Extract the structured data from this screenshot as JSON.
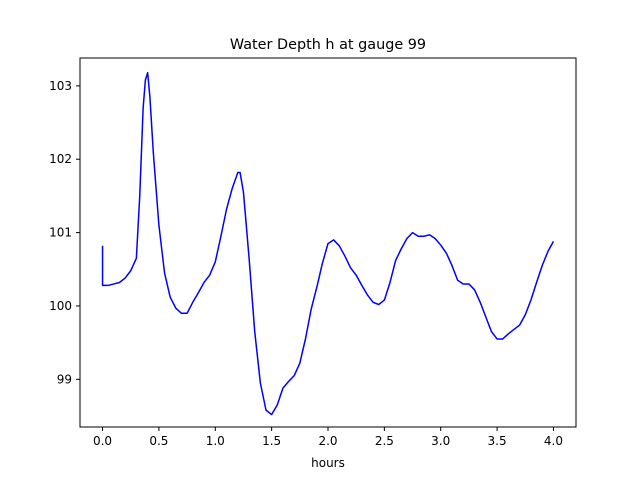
{
  "chart_data": {
    "type": "line",
    "title": "Water Depth h at gauge 99",
    "xlabel": "hours",
    "ylabel": "",
    "xlim": [
      -0.2,
      4.2
    ],
    "ylim": [
      98.35,
      103.38
    ],
    "x_ticks": [
      0.0,
      0.5,
      1.0,
      1.5,
      2.0,
      2.5,
      3.0,
      3.5,
      4.0
    ],
    "x_tick_labels": [
      "0.0",
      "0.5",
      "1.0",
      "1.5",
      "2.0",
      "2.5",
      "3.0",
      "3.5",
      "4.0"
    ],
    "y_ticks": [
      99,
      100,
      101,
      102,
      103
    ],
    "y_tick_labels": [
      "99",
      "100",
      "101",
      "102",
      "103"
    ],
    "grid": false,
    "series": [
      {
        "color": "#0000ff",
        "x": [
          0.0,
          0.0,
          0.05,
          0.1,
          0.15,
          0.2,
          0.25,
          0.3,
          0.33,
          0.36,
          0.38,
          0.4,
          0.42,
          0.45,
          0.5,
          0.55,
          0.6,
          0.65,
          0.7,
          0.75,
          0.8,
          0.85,
          0.9,
          0.95,
          1.0,
          1.05,
          1.1,
          1.15,
          1.2,
          1.22,
          1.25,
          1.3,
          1.35,
          1.4,
          1.45,
          1.5,
          1.55,
          1.6,
          1.65,
          1.7,
          1.75,
          1.8,
          1.85,
          1.9,
          1.95,
          2.0,
          2.05,
          2.1,
          2.15,
          2.2,
          2.25,
          2.3,
          2.35,
          2.4,
          2.45,
          2.5,
          2.55,
          2.6,
          2.65,
          2.7,
          2.75,
          2.8,
          2.85,
          2.9,
          2.95,
          3.0,
          3.05,
          3.1,
          3.15,
          3.2,
          3.25,
          3.3,
          3.35,
          3.4,
          3.45,
          3.5,
          3.55,
          3.6,
          3.65,
          3.7,
          3.75,
          3.8,
          3.85,
          3.9,
          3.95,
          4.0
        ],
        "y": [
          100.82,
          100.28,
          100.28,
          100.3,
          100.32,
          100.38,
          100.48,
          100.65,
          101.5,
          102.7,
          103.08,
          103.18,
          102.85,
          102.1,
          101.1,
          100.45,
          100.12,
          99.97,
          99.9,
          99.9,
          100.05,
          100.18,
          100.32,
          100.42,
          100.6,
          100.95,
          101.32,
          101.6,
          101.82,
          101.82,
          101.55,
          100.65,
          99.65,
          98.95,
          98.58,
          98.52,
          98.65,
          98.88,
          98.97,
          99.05,
          99.22,
          99.55,
          99.95,
          100.25,
          100.58,
          100.85,
          100.9,
          100.82,
          100.68,
          100.52,
          100.42,
          100.28,
          100.15,
          100.05,
          100.02,
          100.08,
          100.32,
          100.62,
          100.78,
          100.92,
          101.0,
          100.95,
          100.95,
          100.97,
          100.92,
          100.83,
          100.72,
          100.55,
          100.35,
          100.3,
          100.3,
          100.22,
          100.05,
          99.85,
          99.65,
          99.55,
          99.55,
          99.62,
          99.68,
          99.74,
          99.88,
          100.08,
          100.32,
          100.55,
          100.74,
          100.88
        ]
      }
    ]
  }
}
